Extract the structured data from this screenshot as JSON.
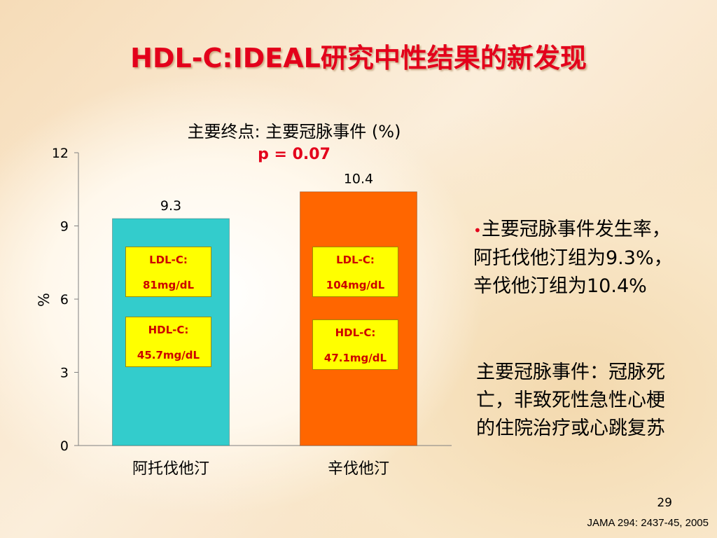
{
  "slide": {
    "title": "HDL-C:IDEAL研究中性结果的新发现",
    "page_number": "29",
    "citation": "JAMA 294: 2437-45, 2005"
  },
  "chart_data": {
    "type": "bar",
    "title": "主要终点: 主要冠脉事件 (%)",
    "annotation": "p = 0.07",
    "categories": [
      "阿托伐他汀",
      "辛伐他汀"
    ],
    "values": [
      9.3,
      10.4
    ],
    "value_labels": [
      "9.3",
      "10.4"
    ],
    "ylabel": "%",
    "ylim": [
      0,
      12
    ],
    "yticks": [
      0,
      3,
      6,
      9,
      12
    ],
    "colors": [
      "#33cccc",
      "#ff6600"
    ],
    "grid": false,
    "bar_notes": [
      {
        "ldl_label": "LDL-C:",
        "ldl_value": "81mg/dL",
        "hdl_label": "HDL-C:",
        "hdl_value": "45.7mg/dL"
      },
      {
        "ldl_label": "LDL-C:",
        "ldl_value": "104mg/dL",
        "hdl_label": "HDL-C:",
        "hdl_value": "47.1mg/dL"
      }
    ]
  },
  "notes": {
    "bullet": "主要冠脉事件发生率，阿托伐他汀组为9.3%，辛伐他汀组为10.4%",
    "definition": "主要冠脉事件：冠脉死亡，非致死性急性心梗的住院治疗或心跳复苏"
  },
  "theme": {
    "title_color": "#e3001b",
    "box_fill": "#ffff00",
    "box_text": "#cc0000"
  }
}
